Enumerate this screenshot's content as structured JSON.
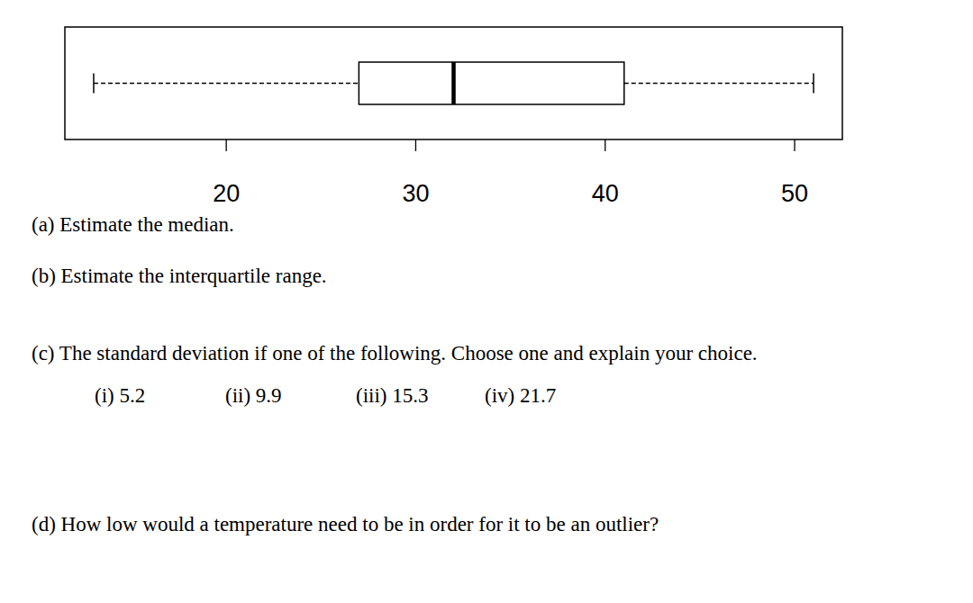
{
  "chart_data": {
    "type": "boxplot",
    "orientation": "horizontal",
    "boxes": [
      {
        "min": 13,
        "q1": 27,
        "median": 32,
        "q3": 41,
        "max": 51
      }
    ],
    "xlim": [
      11.48,
      52.52
    ],
    "xticks": [
      20,
      30,
      40,
      50
    ]
  },
  "questions": [
    "(a) Estimate the median.",
    "(b) Estimate the interquartile range.",
    "(c) The standard deviation if one of the following. Choose one and explain your choice.",
    "(d) How low would a temperature need to be in order for it to be an outlier?"
  ],
  "choices": [
    "(i) 5.2",
    "(ii) 9.9",
    "(iii) 15.3",
    "(iv) 21.7"
  ]
}
